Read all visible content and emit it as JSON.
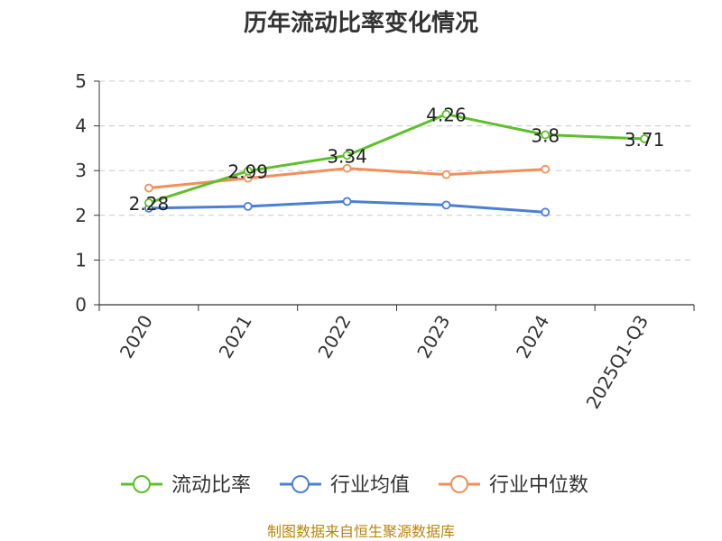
{
  "chart_data": {
    "type": "line",
    "title": "历年流动比率变化情况",
    "categories": [
      "2020",
      "2021",
      "2022",
      "2023",
      "2024",
      "2025Q1-Q3"
    ],
    "ylim": [
      0,
      5
    ],
    "yticks": [
      "0",
      "1",
      "2",
      "3",
      "4",
      "5"
    ],
    "grid": true,
    "legend_position": "bottom",
    "series": [
      {
        "name": "流动比率",
        "color": "#5dbf2b",
        "values": [
          2.28,
          2.99,
          3.34,
          4.26,
          3.8,
          3.71
        ],
        "labels": [
          "2.28",
          "2.99",
          "3.34",
          "4.26",
          "3.8",
          "3.71"
        ]
      },
      {
        "name": "行业均值",
        "color": "#4a7fd4",
        "values": [
          2.16,
          2.2,
          2.31,
          2.23,
          2.07,
          null
        ]
      },
      {
        "name": "行业中位数",
        "color": "#f28f5a",
        "values": [
          2.61,
          2.83,
          3.05,
          2.91,
          3.03,
          null
        ]
      }
    ]
  },
  "source_text": "制图数据来自恒生聚源数据库"
}
